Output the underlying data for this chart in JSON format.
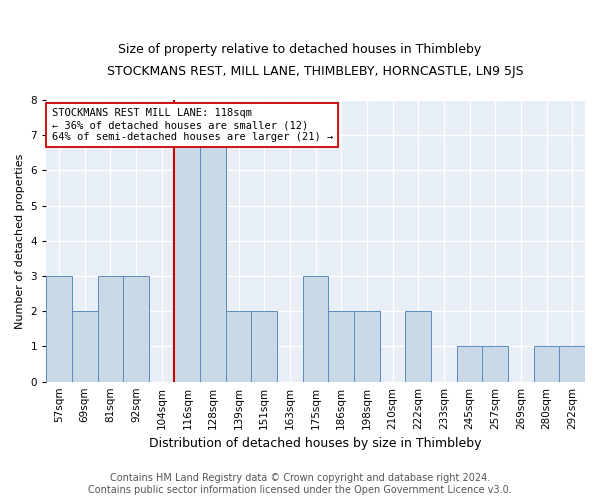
{
  "title": "STOCKMANS REST, MILL LANE, THIMBLEBY, HORNCASTLE, LN9 5JS",
  "subtitle": "Size of property relative to detached houses in Thimbleby",
  "xlabel": "Distribution of detached houses by size in Thimbleby",
  "ylabel": "Number of detached properties",
  "categories": [
    "57sqm",
    "69sqm",
    "81sqm",
    "92sqm",
    "104sqm",
    "116sqm",
    "128sqm",
    "139sqm",
    "151sqm",
    "163sqm",
    "175sqm",
    "186sqm",
    "198sqm",
    "210sqm",
    "222sqm",
    "233sqm",
    "245sqm",
    "257sqm",
    "269sqm",
    "280sqm",
    "292sqm"
  ],
  "values": [
    3,
    2,
    3,
    3,
    0,
    7,
    7,
    2,
    2,
    0,
    3,
    2,
    2,
    0,
    2,
    0,
    1,
    1,
    0,
    1,
    1
  ],
  "highlight_index": 5,
  "bar_color": "#c9d9e8",
  "bar_edge_color": "#5b8abf",
  "highlight_line_color": "#cc0000",
  "annotation_text": "STOCKMANS REST MILL LANE: 118sqm\n← 36% of detached houses are smaller (12)\n64% of semi-detached houses are larger (21) →",
  "annotation_box_edge": "#cc0000",
  "footer_line1": "Contains HM Land Registry data © Crown copyright and database right 2024.",
  "footer_line2": "Contains public sector information licensed under the Open Government Licence v3.0.",
  "ylim": [
    0,
    8
  ],
  "yticks": [
    0,
    1,
    2,
    3,
    4,
    5,
    6,
    7,
    8
  ],
  "bg_color": "#e8eef5",
  "title_fontsize": 9,
  "subtitle_fontsize": 9,
  "ylabel_fontsize": 8,
  "xlabel_fontsize": 9,
  "tick_fontsize": 7.5,
  "footer_fontsize": 7,
  "annot_fontsize": 7.5
}
